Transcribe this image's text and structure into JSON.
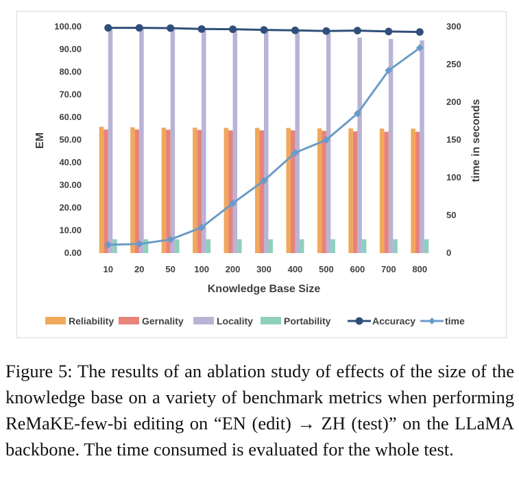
{
  "chart_data": {
    "type": "bar",
    "categories": [
      "10",
      "20",
      "50",
      "100",
      "200",
      "300",
      "400",
      "500",
      "600",
      "700",
      "800"
    ],
    "xlabel": "Knowledge Base Size",
    "ylabel": "EM",
    "ylabel_right": "time in seconds",
    "ylim": [
      0,
      100
    ],
    "ylim_right": [
      0,
      300
    ],
    "y_ticks": [
      "0.00",
      "10.00",
      "20.00",
      "30.00",
      "40.00",
      "50.00",
      "60.00",
      "70.00",
      "80.00",
      "90.00",
      "100.00"
    ],
    "y_ticks_right": [
      "0",
      "50",
      "100",
      "150",
      "200",
      "250",
      "300"
    ],
    "grid": false,
    "legend_position": "bottom",
    "series": [
      {
        "name": "Reliability",
        "kind": "bar",
        "axis": "left",
        "color": "#f0a95a",
        "values": [
          55.8,
          55.6,
          55.4,
          55.4,
          55.3,
          55.3,
          55.3,
          55.1,
          55.1,
          55.0,
          55.0
        ]
      },
      {
        "name": "Gernality",
        "kind": "bar",
        "axis": "left",
        "color": "#e8837a",
        "values": [
          54.6,
          54.6,
          54.5,
          54.4,
          54.2,
          54.2,
          54.2,
          54.0,
          53.8,
          53.6,
          53.6
        ]
      },
      {
        "name": "Locality",
        "kind": "bar",
        "axis": "left",
        "color": "#b9b3d6",
        "values": [
          99.4,
          99.4,
          99.2,
          98.8,
          98.6,
          98.3,
          98.0,
          97.4,
          95.2,
          94.6,
          94.0
        ]
      },
      {
        "name": "Portability",
        "kind": "bar",
        "axis": "left",
        "color": "#8fcfbd",
        "values": [
          6.1,
          6.1,
          6.1,
          6.1,
          6.1,
          6.1,
          6.1,
          6.1,
          6.1,
          6.1,
          6.1
        ]
      },
      {
        "name": "Accuracy",
        "kind": "line",
        "axis": "left",
        "color": "#2f4f7a",
        "values": [
          99.5,
          99.5,
          99.4,
          99.0,
          98.9,
          98.6,
          98.4,
          98.1,
          98.3,
          97.9,
          97.7
        ]
      },
      {
        "name": "time",
        "kind": "line",
        "axis": "right",
        "color": "#6a9bc8",
        "values": [
          11,
          12,
          18,
          34,
          66,
          96,
          133,
          150,
          185,
          242,
          272
        ]
      }
    ]
  },
  "caption": "Figure 5: The results of an ablation study of effects of the size of the knowledge base on a variety of benchmark metrics when performing ReMaKE-few-bi editing on “EN (edit) → ZH (test)” on the LLaMA backbone. The time consumed is evaluated for the whole test."
}
